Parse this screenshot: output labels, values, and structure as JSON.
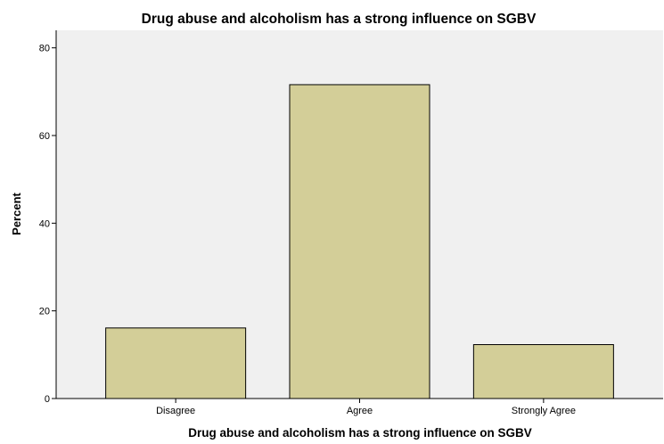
{
  "chart_data": {
    "type": "bar",
    "title": "Drug abuse and alcoholism has a strong influence on SGBV",
    "xlabel": "Drug abuse and alcoholism has a strong influence on SGBV",
    "ylabel": "Percent",
    "categories": [
      "Disagree",
      "Agree",
      "Strongly Agree"
    ],
    "values": [
      16.1,
      71.6,
      12.3
    ],
    "ylim": [
      0,
      84
    ],
    "yticks": [
      0,
      20,
      40,
      60,
      80
    ],
    "grid": false,
    "legend": "none",
    "colors": {
      "bar_fill": "#d3ce98",
      "bar_stroke": "#000000",
      "plot_background": "#f0f0f0"
    }
  }
}
